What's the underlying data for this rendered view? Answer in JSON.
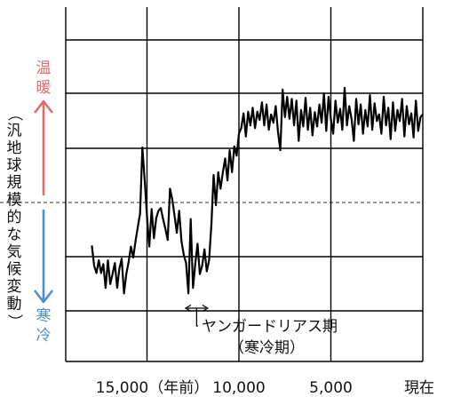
{
  "chart_data": {
    "type": "line",
    "xlabel": "",
    "ylabel": "（汎地球規模的な気候変動）",
    "x_reversed": true,
    "xlim": [
      18000,
      0
    ],
    "x_ticks": [
      {
        "value": 15000,
        "label": "15,000（年前）"
      },
      {
        "value": 10000,
        "label": "10,000"
      },
      {
        "value": 5000,
        "label": "5,000"
      },
      {
        "value": 0,
        "label": "現在"
      }
    ],
    "y_ends": {
      "warm": "温暖",
      "cold": "寒冷"
    },
    "colors": {
      "warm": "#e06c6c",
      "cold": "#4a8fd0",
      "line": "#000000",
      "grid": "#000000"
    },
    "grid": true,
    "baseline_style": "dashed",
    "annotation": {
      "text_line1": "ヤンガードリアス期",
      "text_line2": "（寒冷期）",
      "x_start": 12900,
      "x_end": 11700
    },
    "series": [
      {
        "values": [
          [
            18000,
            -0.78
          ],
          [
            17875,
            -1.15
          ],
          [
            17750,
            -1.28
          ],
          [
            17625,
            -1.05
          ],
          [
            17500,
            -1.28
          ],
          [
            17375,
            -1.12
          ],
          [
            17250,
            -1.55
          ],
          [
            17125,
            -1.05
          ],
          [
            17000,
            -1.48
          ],
          [
            16875,
            -1.3
          ],
          [
            16750,
            -1.1
          ],
          [
            16625,
            -1.55
          ],
          [
            16500,
            -1.2
          ],
          [
            16375,
            -1.02
          ],
          [
            16250,
            -1.65
          ],
          [
            16125,
            -1.3
          ],
          [
            16000,
            -1.08
          ],
          [
            15875,
            -0.8
          ],
          [
            15750,
            -1.0
          ],
          [
            15625,
            -0.7
          ],
          [
            15500,
            -0.45
          ],
          [
            15375,
            -0.2
          ],
          [
            15250,
            1.0
          ],
          [
            15125,
            0.4
          ],
          [
            15000,
            -0.25
          ],
          [
            14875,
            -0.8
          ],
          [
            14750,
            -0.12
          ],
          [
            14625,
            -0.65
          ],
          [
            14500,
            -0.28
          ],
          [
            14375,
            -0.15
          ],
          [
            14250,
            -0.1
          ],
          [
            14125,
            -0.3
          ],
          [
            14000,
            -0.48
          ],
          [
            13875,
            -0.68
          ],
          [
            13750,
            0.25
          ],
          [
            13625,
            0.05
          ],
          [
            13500,
            -0.25
          ],
          [
            13375,
            -0.55
          ],
          [
            13250,
            -0.15
          ],
          [
            13125,
            -0.7
          ],
          [
            13000,
            -0.95
          ],
          [
            12875,
            -1.1
          ],
          [
            12750,
            -1.65
          ],
          [
            12625,
            -0.3
          ],
          [
            12500,
            -1.55
          ],
          [
            12375,
            -1.12
          ],
          [
            12250,
            -0.75
          ],
          [
            12125,
            -1.3
          ],
          [
            12000,
            -1.15
          ],
          [
            11875,
            -0.85
          ],
          [
            11750,
            -1.25
          ],
          [
            11625,
            -1.05
          ],
          [
            11500,
            -0.4
          ],
          [
            11375,
            0.5
          ],
          [
            11250,
            -0.05
          ],
          [
            11125,
            0.55
          ],
          [
            11000,
            0.25
          ],
          [
            10875,
            0.55
          ],
          [
            10750,
            0.8
          ],
          [
            10625,
            0.4
          ],
          [
            10500,
            0.95
          ],
          [
            10375,
            0.55
          ],
          [
            10250,
            1.02
          ],
          [
            10125,
            0.85
          ],
          [
            10000,
            1.25
          ],
          [
            9875,
            1.35
          ],
          [
            9750,
            1.62
          ],
          [
            9625,
            1.2
          ],
          [
            9500,
            1.65
          ],
          [
            9375,
            1.4
          ],
          [
            9250,
            1.72
          ],
          [
            9125,
            1.35
          ],
          [
            9000,
            1.65
          ],
          [
            8875,
            1.5
          ],
          [
            8750,
            1.82
          ],
          [
            8625,
            1.4
          ],
          [
            8500,
            1.78
          ],
          [
            8375,
            1.32
          ],
          [
            8250,
            1.6
          ],
          [
            8125,
            1.45
          ],
          [
            8000,
            1.75
          ],
          [
            7875,
            1.28
          ],
          [
            7750,
            0.95
          ],
          [
            7625,
            2.05
          ],
          [
            7500,
            1.55
          ],
          [
            7375,
            1.92
          ],
          [
            7250,
            1.52
          ],
          [
            7125,
            1.88
          ],
          [
            7000,
            1.4
          ],
          [
            6875,
            1.85
          ],
          [
            6750,
            1.12
          ],
          [
            6625,
            1.68
          ],
          [
            6500,
            1.38
          ],
          [
            6375,
            1.9
          ],
          [
            6250,
            1.32
          ],
          [
            6125,
            1.72
          ],
          [
            6000,
            1.22
          ],
          [
            5875,
            1.64
          ],
          [
            5750,
            1.38
          ],
          [
            5625,
            1.78
          ],
          [
            5500,
            1.45
          ],
          [
            5375,
            1.98
          ],
          [
            5250,
            1.3
          ],
          [
            5125,
            1.92
          ],
          [
            5000,
            1.52
          ],
          [
            4875,
            1.25
          ],
          [
            4750,
            1.85
          ],
          [
            4625,
            1.45
          ],
          [
            4500,
            1.7
          ],
          [
            4375,
            1.32
          ],
          [
            4250,
            2.08
          ],
          [
            4125,
            1.4
          ],
          [
            4000,
            1.75
          ],
          [
            3875,
            1.52
          ],
          [
            3750,
            1.12
          ],
          [
            3625,
            1.88
          ],
          [
            3500,
            1.42
          ],
          [
            3375,
            1.78
          ],
          [
            3250,
            1.25
          ],
          [
            3125,
            1.68
          ],
          [
            3000,
            1.38
          ],
          [
            2875,
            1.95
          ],
          [
            2750,
            1.32
          ],
          [
            2625,
            1.8
          ],
          [
            2500,
            1.48
          ],
          [
            2375,
            1.6
          ],
          [
            2250,
            1.25
          ],
          [
            2125,
            1.92
          ],
          [
            2000,
            1.4
          ],
          [
            1875,
            1.72
          ],
          [
            1750,
            1.15
          ],
          [
            1625,
            1.82
          ],
          [
            1500,
            1.3
          ],
          [
            1375,
            1.68
          ],
          [
            1250,
            1.48
          ],
          [
            1125,
            1.88
          ],
          [
            1000,
            1.2
          ],
          [
            875,
            1.75
          ],
          [
            750,
            1.42
          ],
          [
            625,
            1.62
          ],
          [
            500,
            1.18
          ],
          [
            375,
            1.85
          ],
          [
            250,
            1.3
          ],
          [
            125,
            1.55
          ],
          [
            0,
            1.6
          ]
        ]
      }
    ]
  }
}
